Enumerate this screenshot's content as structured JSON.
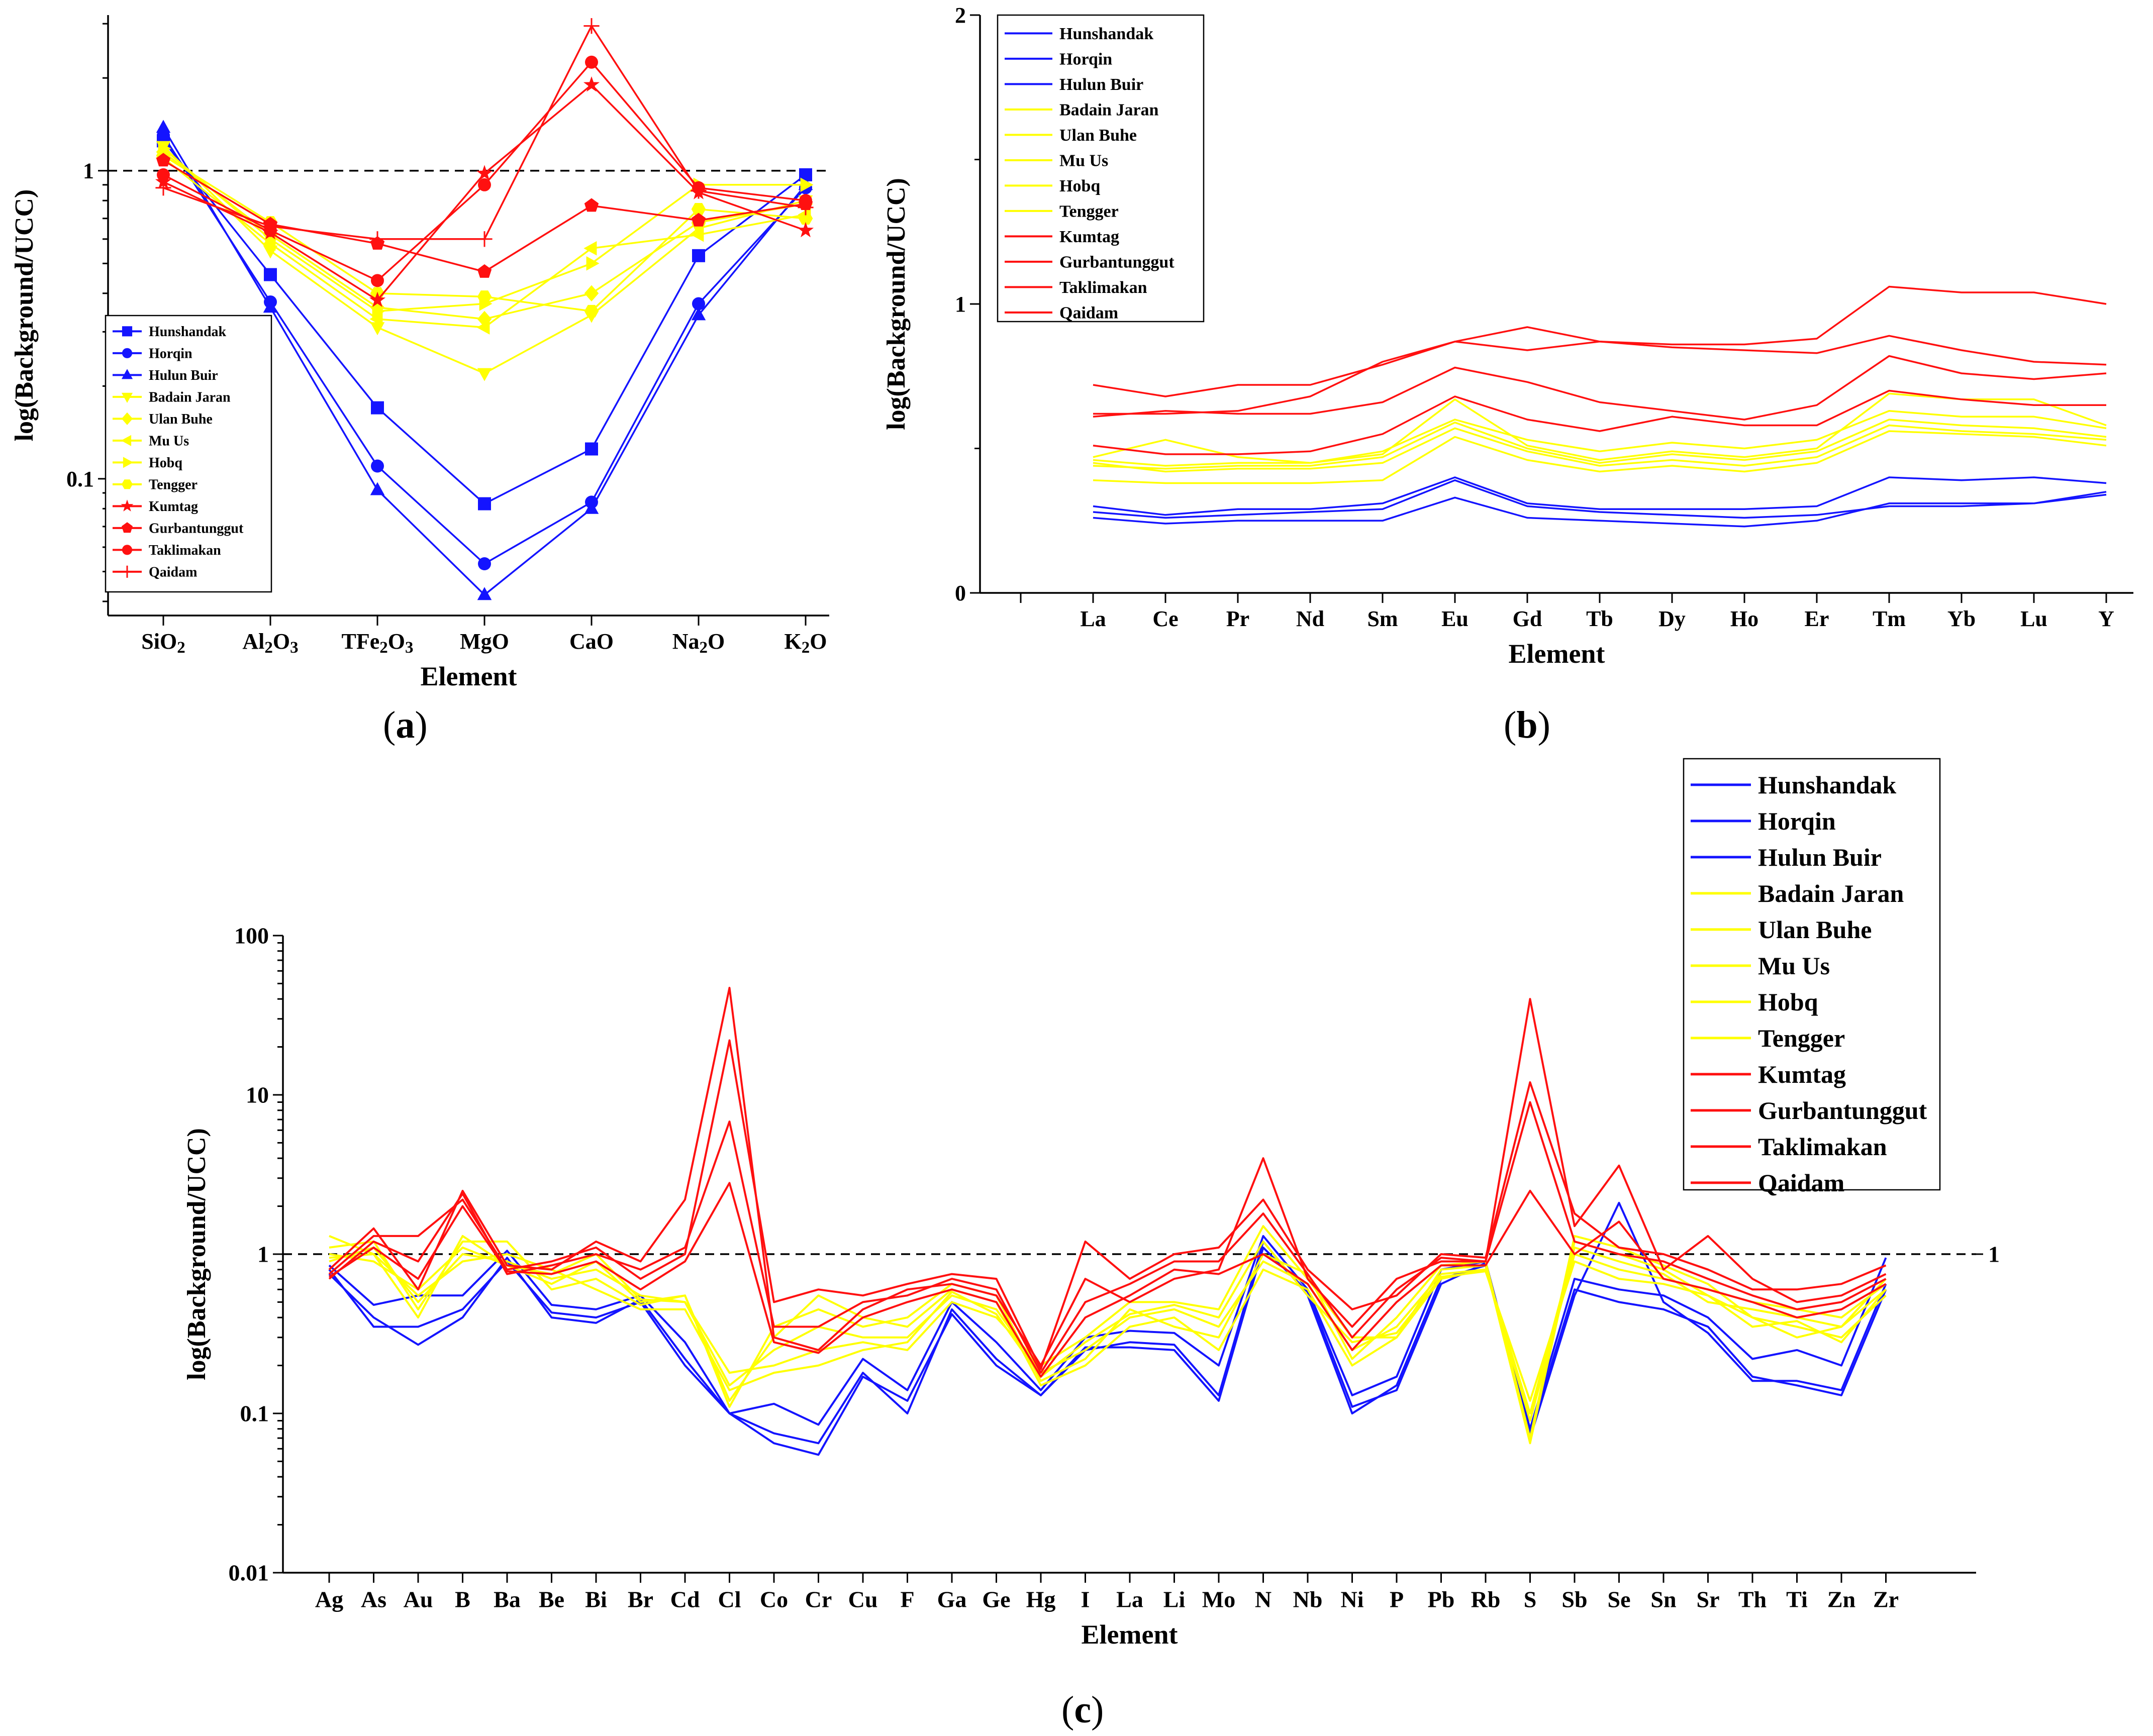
{
  "colors": {
    "blue": "#1414ff",
    "yellow": "#ffff00",
    "red": "#ff1010",
    "axis": "#000000"
  },
  "panel_labels": {
    "a": "a",
    "b": "b",
    "c": "c"
  },
  "chart_data": [
    {
      "id": "a",
      "type": "line",
      "yscale": "log",
      "xlabel": "Element",
      "ylabel": "log(Background/UCC)",
      "ylim": [
        0.036,
        3.2
      ],
      "yticks": [
        0.1,
        1
      ],
      "ytick_labels": [
        "0.1",
        "1"
      ],
      "reference_line": 1,
      "legend_position": "bottom-left",
      "categories": [
        "SiO₂",
        "Al₂O₃",
        "TFe₂O₃",
        "MgO",
        "CaO",
        "Na₂O",
        "K₂O"
      ],
      "series": [
        {
          "name": "Hunshandak",
          "group": "blue",
          "marker": "square",
          "values": [
            1.25,
            0.46,
            0.17,
            0.083,
            0.125,
            0.53,
            0.97
          ]
        },
        {
          "name": "Horqin",
          "group": "blue",
          "marker": "circle",
          "values": [
            1.3,
            0.375,
            0.11,
            0.053,
            0.084,
            0.37,
            0.88
          ]
        },
        {
          "name": "Hulun Buir",
          "group": "blue",
          "marker": "triangle-up",
          "values": [
            1.38,
            0.36,
            0.092,
            0.042,
            0.08,
            0.34,
            0.9
          ]
        },
        {
          "name": "Badain Jaran",
          "group": "yellow",
          "marker": "triangle-down",
          "values": [
            1.2,
            0.55,
            0.31,
            0.22,
            0.34,
            0.65,
            0.8
          ]
        },
        {
          "name": "Ulan Buhe",
          "group": "yellow",
          "marker": "diamond",
          "values": [
            1.15,
            0.62,
            0.36,
            0.33,
            0.4,
            0.68,
            0.78
          ]
        },
        {
          "name": "Mu Us",
          "group": "yellow",
          "marker": "triangle-left",
          "values": [
            1.1,
            0.58,
            0.33,
            0.31,
            0.56,
            0.62,
            0.72
          ]
        },
        {
          "name": "Hobq",
          "group": "yellow",
          "marker": "triangle-right",
          "values": [
            1.18,
            0.6,
            0.35,
            0.37,
            0.5,
            0.9,
            0.9
          ]
        },
        {
          "name": "Tengger",
          "group": "yellow",
          "marker": "hexagon",
          "values": [
            1.12,
            0.68,
            0.4,
            0.39,
            0.35,
            0.75,
            0.7
          ]
        },
        {
          "name": "Kumtag",
          "group": "red",
          "marker": "star",
          "values": [
            0.92,
            0.63,
            0.38,
            0.98,
            1.9,
            0.85,
            0.64
          ]
        },
        {
          "name": "Gurbantunggut",
          "group": "red",
          "marker": "pentagon",
          "values": [
            1.08,
            0.67,
            0.58,
            0.47,
            0.77,
            0.69,
            0.78
          ]
        },
        {
          "name": "Taklimakan",
          "group": "red",
          "marker": "circle",
          "values": [
            0.97,
            0.64,
            0.44,
            0.9,
            2.25,
            0.88,
            0.8
          ]
        },
        {
          "name": "Qaidam",
          "group": "red",
          "marker": "plus",
          "values": [
            0.88,
            0.66,
            0.6,
            0.6,
            2.95,
            0.86,
            0.76
          ]
        }
      ]
    },
    {
      "id": "b",
      "type": "line",
      "xlabel": "Element",
      "ylabel": "log(Background/UCC)",
      "ylim": [
        0,
        2
      ],
      "ytick_labels": [
        "0",
        "1",
        "2"
      ],
      "legend_position": "top-left",
      "categories": [
        "La",
        "Ce",
        "Pr",
        "Nd",
        "Sm",
        "Eu",
        "Gd",
        "Tb",
        "Dy",
        "Ho",
        "Er",
        "Tm",
        "Yb",
        "Lu",
        "Y"
      ],
      "series": [
        {
          "name": "Hunshandak",
          "group": "blue",
          "values": [
            0.3,
            0.27,
            0.29,
            0.29,
            0.31,
            0.4,
            0.31,
            0.29,
            0.29,
            0.29,
            0.3,
            0.4,
            0.39,
            0.4,
            0.38
          ]
        },
        {
          "name": "Horqin",
          "group": "blue",
          "values": [
            0.28,
            0.26,
            0.27,
            0.28,
            0.29,
            0.39,
            0.3,
            0.28,
            0.27,
            0.26,
            0.27,
            0.3,
            0.3,
            0.31,
            0.35
          ]
        },
        {
          "name": "Hulun Buir",
          "group": "blue",
          "values": [
            0.26,
            0.24,
            0.25,
            0.25,
            0.25,
            0.33,
            0.26,
            0.25,
            0.24,
            0.23,
            0.25,
            0.31,
            0.31,
            0.31,
            0.34
          ]
        },
        {
          "name": "Badain Jaran",
          "group": "yellow",
          "values": [
            0.47,
            0.53,
            0.47,
            0.45,
            0.49,
            0.6,
            0.53,
            0.49,
            0.52,
            0.5,
            0.53,
            0.63,
            0.61,
            0.61,
            0.57
          ]
        },
        {
          "name": "Ulan Buhe",
          "group": "yellow",
          "values": [
            0.45,
            0.42,
            0.43,
            0.43,
            0.45,
            0.57,
            0.49,
            0.44,
            0.46,
            0.44,
            0.47,
            0.58,
            0.56,
            0.55,
            0.53
          ]
        },
        {
          "name": "Mu Us",
          "group": "yellow",
          "values": [
            0.44,
            0.43,
            0.44,
            0.44,
            0.47,
            0.59,
            0.5,
            0.45,
            0.48,
            0.46,
            0.49,
            0.6,
            0.58,
            0.57,
            0.54
          ]
        },
        {
          "name": "Hobq",
          "group": "yellow",
          "values": [
            0.46,
            0.44,
            0.45,
            0.45,
            0.48,
            0.67,
            0.51,
            0.46,
            0.49,
            0.47,
            0.5,
            0.69,
            0.67,
            0.67,
            0.58
          ]
        },
        {
          "name": "Tengger",
          "group": "yellow",
          "values": [
            0.39,
            0.38,
            0.38,
            0.38,
            0.39,
            0.54,
            0.46,
            0.42,
            0.44,
            0.42,
            0.45,
            0.56,
            0.55,
            0.54,
            0.51
          ]
        },
        {
          "name": "Kumtag",
          "group": "red",
          "values": [
            0.72,
            0.68,
            0.72,
            0.72,
            0.79,
            0.87,
            0.84,
            0.87,
            0.86,
            0.86,
            0.88,
            1.06,
            1.04,
            1.04,
            1.0
          ]
        },
        {
          "name": "Gurbantunggut",
          "group": "red",
          "values": [
            0.62,
            0.62,
            0.63,
            0.68,
            0.8,
            0.87,
            0.92,
            0.87,
            0.85,
            0.84,
            0.83,
            0.89,
            0.84,
            0.8,
            0.79
          ]
        },
        {
          "name": "Taklimakan",
          "group": "red",
          "values": [
            0.61,
            0.63,
            0.62,
            0.62,
            0.66,
            0.78,
            0.73,
            0.66,
            0.63,
            0.6,
            0.65,
            0.82,
            0.76,
            0.74,
            0.76
          ]
        },
        {
          "name": "Qaidam",
          "group": "red",
          "values": [
            0.51,
            0.48,
            0.48,
            0.49,
            0.55,
            0.68,
            0.6,
            0.56,
            0.61,
            0.58,
            0.58,
            0.7,
            0.67,
            0.65,
            0.65
          ]
        }
      ]
    },
    {
      "id": "c",
      "type": "line",
      "yscale": "log",
      "xlabel": "Element",
      "ylabel": "log(Background/UCC)",
      "ylim": [
        0.01,
        100
      ],
      "yticks": [
        0.01,
        0.1,
        1,
        10,
        100
      ],
      "ytick_labels": [
        "0.01",
        "0.1",
        "1",
        "10",
        "100"
      ],
      "reference_line": 1,
      "reference_label": "1",
      "legend_position": "top-right",
      "categories": [
        "Ag",
        "As",
        "Au",
        "B",
        "Ba",
        "Be",
        "Bi",
        "Br",
        "Cd",
        "Cl",
        "Co",
        "Cr",
        "Cu",
        "F",
        "Ga",
        "Ge",
        "Hg",
        "I",
        "La",
        "Li",
        "Mo",
        "N",
        "Nb",
        "Ni",
        "P",
        "Pb",
        "Rb",
        "S",
        "Sb",
        "Se",
        "Sn",
        "Sr",
        "Th",
        "Ti",
        "Zn",
        "Zr"
      ],
      "series": [
        {
          "name": "Hunshandak",
          "group": "blue",
          "values": [
            0.85,
            0.48,
            0.55,
            0.55,
            1.05,
            0.48,
            0.45,
            0.55,
            0.28,
            0.1,
            0.115,
            0.085,
            0.22,
            0.14,
            0.5,
            0.28,
            0.14,
            0.3,
            0.33,
            0.32,
            0.2,
            1.3,
            0.6,
            0.13,
            0.17,
            0.8,
            0.9,
            0.08,
            0.7,
            0.6,
            0.55,
            0.4,
            0.22,
            0.25,
            0.2,
            0.95
          ]
        },
        {
          "name": "Horqin",
          "group": "blue",
          "values": [
            0.8,
            0.35,
            0.35,
            0.45,
            0.9,
            0.43,
            0.4,
            0.5,
            0.2,
            0.1,
            0.075,
            0.065,
            0.18,
            0.1,
            0.45,
            0.22,
            0.13,
            0.25,
            0.28,
            0.27,
            0.13,
            1.2,
            0.55,
            0.1,
            0.15,
            0.7,
            0.85,
            0.075,
            0.6,
            0.5,
            0.45,
            0.35,
            0.17,
            0.15,
            0.13,
            0.6
          ]
        },
        {
          "name": "Hulun Buir",
          "group": "blue",
          "values": [
            0.75,
            0.4,
            0.27,
            0.4,
            0.95,
            0.4,
            0.37,
            0.52,
            0.22,
            0.1,
            0.065,
            0.055,
            0.17,
            0.12,
            0.42,
            0.2,
            0.13,
            0.26,
            0.26,
            0.25,
            0.12,
            1.1,
            0.58,
            0.11,
            0.14,
            0.65,
            0.88,
            0.07,
            0.55,
            2.1,
            0.5,
            0.32,
            0.16,
            0.16,
            0.14,
            0.65
          ]
        },
        {
          "name": "Badain Jaran",
          "group": "yellow",
          "values": [
            1.3,
            1.0,
            0.4,
            1.3,
            0.85,
            0.65,
            0.9,
            0.5,
            0.55,
            0.12,
            0.3,
            0.55,
            0.4,
            0.35,
            0.6,
            0.5,
            0.15,
            0.2,
            0.35,
            0.4,
            0.25,
            0.8,
            0.6,
            0.2,
            0.3,
            0.8,
            0.85,
            0.065,
            1.2,
            1.0,
            0.8,
            0.55,
            0.4,
            0.35,
            0.3,
            0.55
          ]
        },
        {
          "name": "Ulan Buhe",
          "group": "yellow",
          "values": [
            0.9,
            1.1,
            0.5,
            1.0,
            0.9,
            0.7,
            0.8,
            0.55,
            0.5,
            0.15,
            0.25,
            0.35,
            0.3,
            0.3,
            0.55,
            0.45,
            0.18,
            0.25,
            0.4,
            0.45,
            0.35,
            0.9,
            0.65,
            0.25,
            0.35,
            0.75,
            0.8,
            0.1,
            1.1,
            0.9,
            0.75,
            0.5,
            0.45,
            0.4,
            0.35,
            0.6
          ]
        },
        {
          "name": "Mu Us",
          "group": "yellow",
          "values": [
            1.0,
            0.9,
            0.6,
            1.1,
            0.85,
            0.75,
            1.0,
            0.52,
            0.5,
            0.18,
            0.2,
            0.25,
            0.28,
            0.25,
            0.5,
            0.4,
            0.2,
            0.3,
            0.5,
            0.5,
            0.45,
            1.5,
            0.7,
            0.3,
            0.3,
            0.7,
            0.8,
            0.09,
            1.0,
            0.8,
            0.7,
            0.6,
            0.5,
            0.45,
            0.4,
            0.65
          ]
        },
        {
          "name": "Hobq",
          "group": "yellow",
          "values": [
            1.1,
            1.2,
            0.45,
            1.2,
            1.2,
            0.6,
            0.7,
            0.48,
            0.55,
            0.11,
            0.35,
            0.45,
            0.35,
            0.4,
            0.65,
            0.55,
            0.16,
            0.22,
            0.45,
            0.35,
            0.3,
            1.0,
            0.75,
            0.22,
            0.4,
            0.85,
            0.9,
            0.07,
            1.3,
            1.1,
            0.85,
            0.65,
            0.4,
            0.3,
            0.35,
            0.7
          ]
        },
        {
          "name": "Tengger",
          "group": "yellow",
          "values": [
            0.95,
            1.0,
            0.55,
            0.9,
            1.0,
            0.8,
            0.6,
            0.45,
            0.45,
            0.14,
            0.18,
            0.2,
            0.25,
            0.28,
            0.58,
            0.42,
            0.17,
            0.28,
            0.42,
            0.48,
            0.4,
            1.2,
            0.55,
            0.28,
            0.32,
            0.72,
            0.78,
            0.12,
            0.9,
            0.7,
            0.65,
            0.55,
            0.35,
            0.38,
            0.28,
            0.6
          ]
        },
        {
          "name": "Kumtag",
          "group": "red",
          "values": [
            0.8,
            1.45,
            0.6,
            2.5,
            0.85,
            0.8,
            1.2,
            0.9,
            2.2,
            47.0,
            0.3,
            0.25,
            0.45,
            0.6,
            0.65,
            0.55,
            0.2,
            0.7,
            0.5,
            0.7,
            0.8,
            4.0,
            0.7,
            0.35,
            0.7,
            0.9,
            0.9,
            40.0,
            1.5,
            3.6,
            0.8,
            1.3,
            0.7,
            0.5,
            0.55,
            0.75
          ]
        },
        {
          "name": "Gurbantunggut",
          "group": "red",
          "values": [
            0.75,
            1.3,
            1.3,
            2.2,
            0.8,
            0.9,
            1.1,
            0.7,
            1.0,
            22.0,
            0.5,
            0.6,
            0.55,
            0.65,
            0.75,
            0.7,
            0.19,
            1.2,
            0.7,
            1.0,
            1.1,
            2.2,
            0.8,
            0.45,
            0.55,
            1.0,
            0.95,
            12.0,
            1.8,
            1.1,
            1.0,
            0.8,
            0.6,
            0.6,
            0.65,
            0.85
          ]
        },
        {
          "name": "Taklimakan",
          "group": "red",
          "values": [
            0.7,
            1.2,
            0.9,
            2.4,
            0.75,
            0.85,
            1.0,
            0.8,
            1.1,
            6.8,
            0.35,
            0.35,
            0.5,
            0.55,
            0.7,
            0.6,
            0.18,
            0.5,
            0.65,
            0.9,
            0.9,
            1.8,
            0.75,
            0.3,
            0.6,
            0.95,
            0.9,
            9.0,
            1.2,
            1.0,
            0.9,
            0.7,
            0.55,
            0.45,
            0.5,
            0.7
          ]
        },
        {
          "name": "Qaidam",
          "group": "red",
          "values": [
            0.72,
            1.1,
            0.7,
            2.0,
            0.78,
            0.75,
            0.9,
            0.6,
            0.9,
            2.8,
            0.28,
            0.24,
            0.4,
            0.5,
            0.6,
            0.5,
            0.17,
            0.4,
            0.55,
            0.8,
            0.75,
            1.0,
            0.65,
            0.25,
            0.5,
            0.85,
            0.85,
            2.5,
            1.0,
            1.6,
            0.7,
            0.6,
            0.5,
            0.4,
            0.45,
            0.65
          ]
        }
      ]
    }
  ]
}
